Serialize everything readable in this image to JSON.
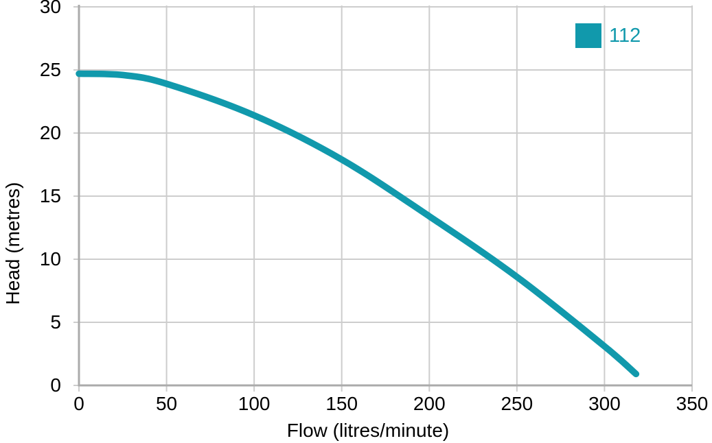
{
  "chart_data": {
    "type": "line",
    "title": "",
    "xlabel": "Flow (litres/minute)",
    "ylabel": "Head (metres)",
    "xlim": [
      0,
      350
    ],
    "ylim": [
      0,
      30
    ],
    "xticks": [
      0,
      50,
      100,
      150,
      200,
      250,
      300,
      350
    ],
    "yticks": [
      0,
      5,
      10,
      15,
      20,
      25,
      30
    ],
    "grid": true,
    "legend_position": "top-right",
    "series": [
      {
        "name": "112",
        "color": "#1199AC",
        "points": [
          [
            0,
            24.7
          ],
          [
            25,
            24.6
          ],
          [
            50,
            23.9
          ],
          [
            100,
            21.4
          ],
          [
            150,
            17.9
          ],
          [
            200,
            13.4
          ],
          [
            250,
            8.6
          ],
          [
            300,
            3.1
          ],
          [
            318,
            0.9
          ]
        ]
      }
    ]
  },
  "colors": {
    "grid": "#CDCDCD",
    "axis": "#ABABAB",
    "text": "#000000",
    "background": "#FFFFFF",
    "series_teal": "#1199AC"
  }
}
